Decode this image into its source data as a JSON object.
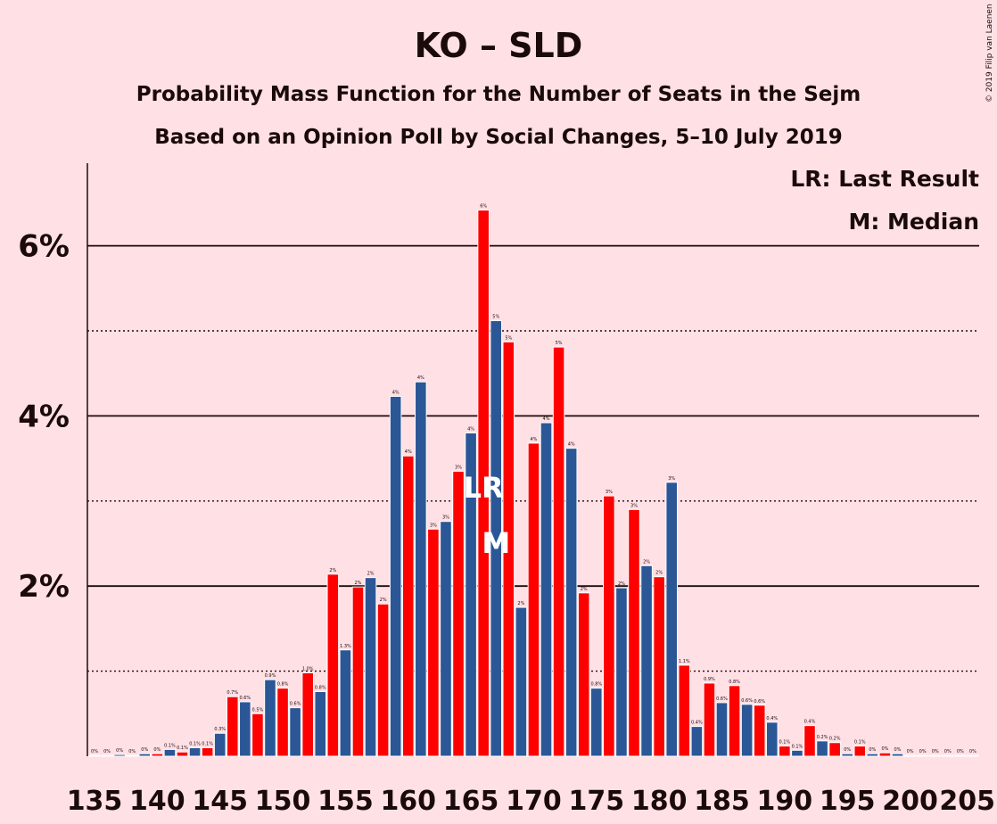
{
  "header": {
    "title": "KO – SLD",
    "subtitle1": "Probability Mass Function for the Number of Seats in the Sejm",
    "subtitle2": "Based on an Opinion Poll by Social Changes, 5–10 July 2019",
    "copyright": "© 2019 Filip van Laenen"
  },
  "legend": {
    "lr": "LR: Last Result",
    "m": "M: Median"
  },
  "markers": {
    "lr_text": "LR",
    "lr_seat": 166,
    "m_text": "M",
    "m_seat": 167
  },
  "colors": {
    "blue": "#2b5797",
    "red": "#ff0000",
    "background": "#ffe0e5",
    "text": "#1a0a0a"
  },
  "chart_data": {
    "type": "bar",
    "x_start": 135,
    "xlim": [
      135,
      205
    ],
    "ylim": [
      0,
      7
    ],
    "yticks_major": [
      2,
      4,
      6
    ],
    "yticks_minor": [
      1,
      3,
      5
    ],
    "ytick_labels": [
      "2%",
      "4%",
      "6%"
    ],
    "xticks": [
      135,
      140,
      145,
      150,
      155,
      160,
      165,
      170,
      175,
      180,
      185,
      190,
      195,
      200,
      205
    ],
    "values": [
      0.01,
      0.01,
      0.02,
      0.01,
      0.03,
      0.03,
      0.08,
      0.05,
      0.1,
      0.1,
      0.27,
      0.7,
      0.64,
      0.5,
      0.9,
      0.8,
      0.57,
      0.98,
      0.76,
      2.14,
      1.25,
      1.99,
      2.1,
      1.79,
      4.23,
      3.53,
      4.4,
      2.67,
      2.76,
      3.35,
      3.8,
      6.42,
      5.12,
      4.87,
      1.75,
      3.68,
      3.92,
      4.81,
      3.62,
      1.92,
      0.8,
      3.06,
      1.98,
      2.9,
      2.24,
      2.11,
      3.22,
      1.07,
      0.35,
      0.86,
      0.63,
      0.83,
      0.61,
      0.6,
      0.4,
      0.12,
      0.07,
      0.36,
      0.18,
      0.16,
      0.03,
      0.12,
      0.03,
      0.04,
      0.03,
      0.01,
      0.01,
      0.01,
      0.01,
      0.01,
      0.01
    ],
    "bar_labels": [
      "0%",
      "0%",
      "0%",
      "0%",
      "0%",
      "0%",
      "0.1%",
      "0.1%",
      "0.1%",
      "0.1%",
      "0.3%",
      "0.7%",
      "0.6%",
      "0.5%",
      "0.9%",
      "0.8%",
      "0.6%",
      "1.0%",
      "0.8%",
      "2%",
      "1.3%",
      "2%",
      "2%",
      "2%",
      "4%",
      "4%",
      "4%",
      "3%",
      "3%",
      "3%",
      "4%",
      "6%",
      "5%",
      "5%",
      "2%",
      "4%",
      "4%",
      "5%",
      "4%",
      "2%",
      "0.8%",
      "3%",
      "2%",
      "3%",
      "2%",
      "2%",
      "3%",
      "1.1%",
      "0.4%",
      "0.9%",
      "0.6%",
      "0.8%",
      "0.6%",
      "0.6%",
      "0.4%",
      "0.1%",
      "0.1%",
      "0.4%",
      "0.2%",
      "0.2%",
      "0%",
      "0.1%",
      "0%",
      "0%",
      "0%",
      "0%",
      "0%",
      "0%",
      "0%",
      "0%",
      "0%"
    ]
  }
}
